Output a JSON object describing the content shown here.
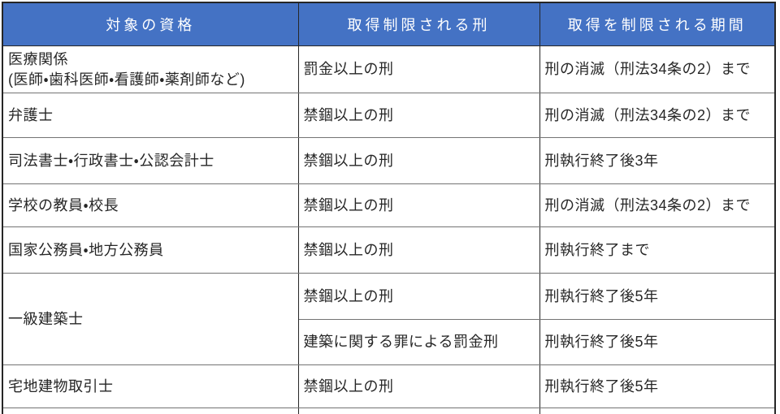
{
  "colors": {
    "header_bg": "#4472C4",
    "header_text": "#FFFFFF",
    "border_dark": "#262626",
    "border_light": "#737373",
    "body_text": "#262626",
    "page_bg": "#FFFFFF"
  },
  "table": {
    "headers": {
      "qualification": "対象の資格",
      "penalty": "取得制限される刑",
      "period": "取得を制限される期間"
    },
    "rows": [
      {
        "qualification": "医療関係\n(医師・歯科医師・看護師・薬剤師など)",
        "penalty": "罰金以上の刑",
        "period": "刑の消滅（刑法34条の2）まで"
      },
      {
        "qualification": "弁護士",
        "penalty": "禁錮以上の刑",
        "period": "刑の消滅（刑法34条の2）まで"
      },
      {
        "qualification": "司法書士・行政書士・公認会計士",
        "penalty": "禁錮以上の刑",
        "period": "刑執行終了後3年"
      },
      {
        "qualification": "学校の教員・校長",
        "penalty": "禁錮以上の刑",
        "period": "刑の消滅（刑法34条の2）まで"
      },
      {
        "qualification": "国家公務員・地方公務員",
        "penalty": "禁錮以上の刑",
        "period": "刑執行終了まで"
      },
      {
        "qualification": "一級建築士",
        "qualification_rowspan": 2,
        "penalty": "禁錮以上の刑",
        "period": "刑執行終了後5年"
      },
      {
        "penalty": "建築に関する罪による罰金刑",
        "period": "刑執行終了後5年"
      },
      {
        "qualification": "宅地建物取引士",
        "penalty": "禁錮以上の刑",
        "period": "刑執行終了後5年"
      }
    ]
  }
}
